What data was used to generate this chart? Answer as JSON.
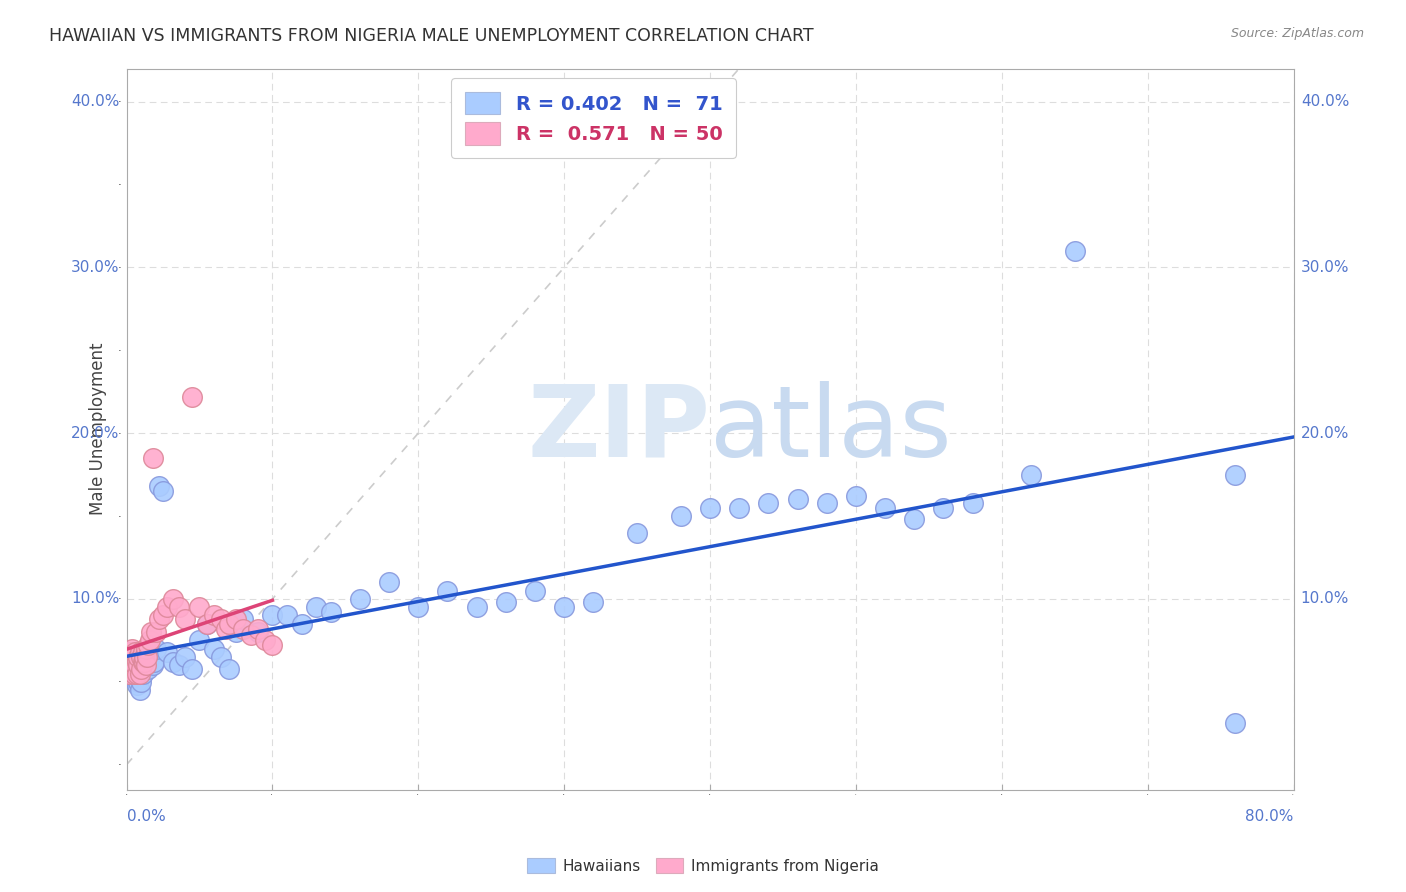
{
  "title": "HAWAIIAN VS IMMIGRANTS FROM NIGERIA MALE UNEMPLOYMENT CORRELATION CHART",
  "source": "Source: ZipAtlas.com",
  "ylabel": "Male Unemployment",
  "xlim": [
    0,
    0.8
  ],
  "ylim": [
    -0.015,
    0.42
  ],
  "hawaiian_color": "#aaccff",
  "nigeria_color": "#ffaacc",
  "trendline_hawaiian_color": "#2255cc",
  "trendline_nigeria_color": "#dd4477",
  "diagonal_color": "#cccccc",
  "watermark_color": "#d0dff5",
  "grid_color": "#dddddd",
  "background_color": "#ffffff",
  "tick_color": "#5577cc",
  "hawaiian_x": [
    0.001,
    0.002,
    0.003,
    0.004,
    0.004,
    0.005,
    0.005,
    0.006,
    0.006,
    0.007,
    0.007,
    0.008,
    0.008,
    0.009,
    0.009,
    0.01,
    0.01,
    0.011,
    0.012,
    0.013,
    0.014,
    0.015,
    0.016,
    0.018,
    0.019,
    0.02,
    0.022,
    0.025,
    0.028,
    0.032,
    0.036,
    0.04,
    0.045,
    0.05,
    0.055,
    0.06,
    0.065,
    0.07,
    0.075,
    0.08,
    0.09,
    0.1,
    0.11,
    0.12,
    0.13,
    0.14,
    0.16,
    0.18,
    0.2,
    0.22,
    0.24,
    0.26,
    0.28,
    0.3,
    0.32,
    0.35,
    0.38,
    0.4,
    0.42,
    0.44,
    0.46,
    0.48,
    0.5,
    0.52,
    0.54,
    0.56,
    0.58,
    0.62,
    0.65,
    0.76,
    0.76
  ],
  "hawaiian_y": [
    0.06,
    0.055,
    0.058,
    0.052,
    0.062,
    0.06,
    0.065,
    0.055,
    0.068,
    0.062,
    0.048,
    0.05,
    0.058,
    0.045,
    0.055,
    0.05,
    0.06,
    0.055,
    0.065,
    0.062,
    0.06,
    0.058,
    0.065,
    0.06,
    0.062,
    0.07,
    0.168,
    0.165,
    0.068,
    0.062,
    0.06,
    0.065,
    0.058,
    0.075,
    0.085,
    0.07,
    0.065,
    0.058,
    0.08,
    0.088,
    0.08,
    0.09,
    0.09,
    0.085,
    0.095,
    0.092,
    0.1,
    0.11,
    0.095,
    0.105,
    0.095,
    0.098,
    0.105,
    0.095,
    0.098,
    0.14,
    0.15,
    0.155,
    0.155,
    0.158,
    0.16,
    0.158,
    0.162,
    0.155,
    0.148,
    0.155,
    0.158,
    0.175,
    0.31,
    0.175,
    0.025
  ],
  "nigeria_x": [
    0.001,
    0.002,
    0.002,
    0.003,
    0.003,
    0.004,
    0.004,
    0.005,
    0.005,
    0.006,
    0.006,
    0.007,
    0.007,
    0.008,
    0.008,
    0.009,
    0.009,
    0.01,
    0.01,
    0.011,
    0.011,
    0.012,
    0.012,
    0.013,
    0.013,
    0.014,
    0.015,
    0.016,
    0.017,
    0.018,
    0.02,
    0.022,
    0.025,
    0.028,
    0.032,
    0.036,
    0.04,
    0.045,
    0.05,
    0.055,
    0.06,
    0.065,
    0.068,
    0.07,
    0.075,
    0.08,
    0.085,
    0.09,
    0.095,
    0.1
  ],
  "nigeria_y": [
    0.06,
    0.055,
    0.068,
    0.058,
    0.065,
    0.06,
    0.07,
    0.055,
    0.065,
    0.06,
    0.068,
    0.055,
    0.062,
    0.06,
    0.065,
    0.055,
    0.068,
    0.058,
    0.065,
    0.062,
    0.068,
    0.062,
    0.065,
    0.06,
    0.07,
    0.065,
    0.072,
    0.075,
    0.08,
    0.185,
    0.08,
    0.088,
    0.09,
    0.095,
    0.1,
    0.095,
    0.088,
    0.222,
    0.095,
    0.085,
    0.09,
    0.088,
    0.082,
    0.085,
    0.088,
    0.082,
    0.078,
    0.082,
    0.075,
    0.072
  ]
}
